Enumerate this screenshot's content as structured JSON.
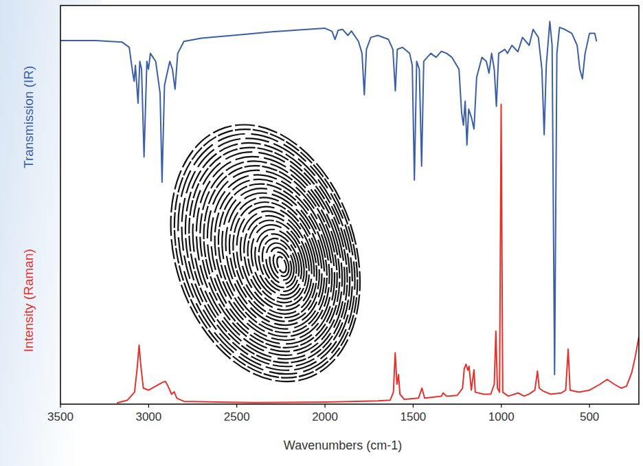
{
  "chart_data": {
    "type": "line",
    "x_label": "Wavenumbers (cm-1)",
    "xlim": [
      3500,
      220
    ],
    "xticks": [
      3500,
      3000,
      2500,
      2000,
      1500,
      1000,
      500
    ],
    "ylim": [
      0,
      100
    ],
    "tick_labels": "x",
    "grid": false,
    "series": [
      {
        "name": "Transmission (IR)",
        "color": "#3a5fa8",
        "x": [
          3500,
          3300,
          3150,
          3110,
          3090,
          3082,
          3075,
          3060,
          3050,
          3040,
          3026,
          3010,
          3001,
          2990,
          2960,
          2935,
          2924,
          2910,
          2880,
          2865,
          2850,
          2835,
          2800,
          2700,
          2500,
          2300,
          2100,
          2000,
          1960,
          1943,
          1925,
          1900,
          1870,
          1850,
          1810,
          1790,
          1777,
          1765,
          1740,
          1700,
          1640,
          1615,
          1601,
          1590,
          1560,
          1520,
          1505,
          1493,
          1480,
          1465,
          1452,
          1440,
          1400,
          1370,
          1340,
          1310,
          1280,
          1240,
          1225,
          1215,
          1205,
          1195,
          1185,
          1170,
          1155,
          1140,
          1110,
          1085,
          1070,
          1055,
          1040,
          1028,
          1015,
          980,
          965,
          940,
          906,
          880,
          842,
          820,
          790,
          770,
          757,
          745,
          725,
          712,
          698,
          685,
          670,
          640,
          600,
          570,
          555,
          540,
          525,
          500,
          470,
          460
        ],
        "values": [
          91.2,
          91.2,
          90.8,
          89.5,
          83,
          81,
          85,
          75.5,
          86,
          84,
          62,
          86,
          84,
          88,
          86,
          78,
          55.7,
          80,
          86,
          84,
          79,
          88,
          91,
          91.8,
          92.6,
          93.4,
          94,
          94.3,
          93.5,
          91.5,
          93.8,
          94,
          92.5,
          93.6,
          91,
          88,
          77.6,
          89,
          92,
          92.5,
          91.5,
          89,
          78.6,
          89,
          89.5,
          88,
          85,
          56.2,
          86,
          84,
          59.7,
          86,
          88,
          87,
          88.5,
          88,
          87,
          84,
          73,
          70,
          76,
          65,
          74,
          72,
          69,
          82,
          87,
          86,
          83,
          88,
          84,
          74.7,
          88,
          89,
          88,
          90,
          88.4,
          92,
          90,
          94,
          92,
          84,
          67.6,
          85,
          96,
          90,
          7.4,
          88,
          94.5,
          94,
          93,
          90,
          84,
          81.6,
          88,
          93,
          93,
          91
        ]
      },
      {
        "name": "Intensity (Raman)",
        "color": "#e8302a",
        "x": [
          3180,
          3120,
          3080,
          3065,
          3054,
          3045,
          3030,
          3000,
          2960,
          2920,
          2904,
          2890,
          2870,
          2855,
          2840,
          2800,
          2600,
          2400,
          2000,
          1700,
          1630,
          1612,
          1602,
          1592,
          1583,
          1575,
          1550,
          1470,
          1450,
          1435,
          1340,
          1330,
          1310,
          1250,
          1220,
          1210,
          1200,
          1190,
          1183,
          1170,
          1160,
          1155,
          1148,
          1100,
          1060,
          1040,
          1031,
          1022,
          1010,
          1001,
          992,
          960,
          905,
          870,
          840,
          810,
          795,
          785,
          760,
          720,
          660,
          635,
          621,
          610,
          560,
          500,
          440,
          400,
          360,
          320,
          290,
          260,
          240,
          220
        ],
        "values": [
          0.3,
          1,
          3,
          9,
          14.8,
          10,
          4,
          3.5,
          4.5,
          5.5,
          5.7,
          4.5,
          2.5,
          3.1,
          1.5,
          0.7,
          0.5,
          0.4,
          0.5,
          0.8,
          1,
          3,
          12.9,
          5,
          7.4,
          2.5,
          1.2,
          1.5,
          4,
          1.5,
          2,
          2.8,
          2,
          2.2,
          4,
          9,
          10,
          8.5,
          9.5,
          3.5,
          7,
          8.6,
          3,
          2.5,
          2.5,
          5,
          18.3,
          4,
          3,
          75.2,
          3,
          2,
          2.8,
          2,
          2.6,
          3.5,
          8.3,
          4,
          3.2,
          2.5,
          2.8,
          3.5,
          13.8,
          3.5,
          3,
          3.5,
          5,
          6.2,
          5,
          4,
          4.5,
          8,
          12,
          16.9
        ]
      }
    ]
  }
}
